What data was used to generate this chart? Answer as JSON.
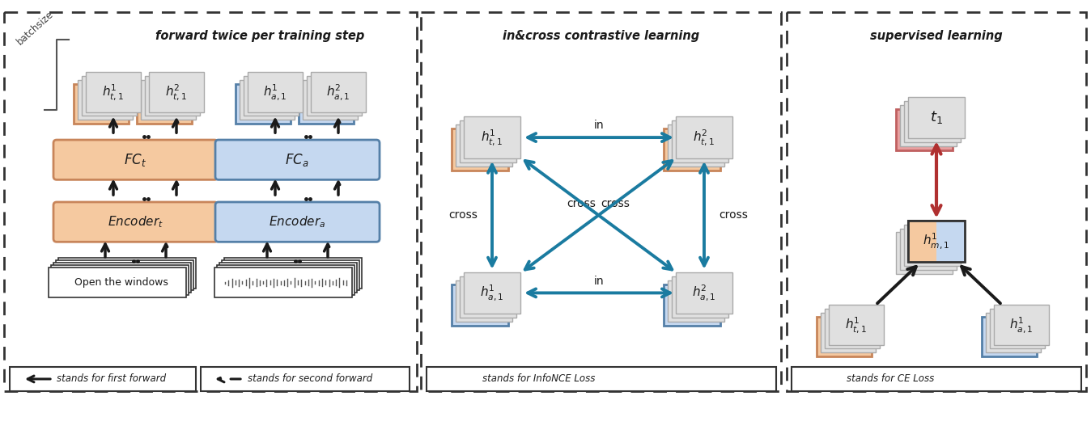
{
  "fig_width": 13.48,
  "fig_height": 5.37,
  "bg_color": "#ffffff",
  "panel1_title": "forward twice per training step",
  "panel2_title": "in&cross contrastive learning",
  "panel3_title": "supervised learning",
  "orange_fill": "#F5C9A0",
  "orange_border": "#C8855A",
  "blue_fill": "#C5D8F0",
  "blue_border": "#5580A8",
  "red_fill": "#E8A0A0",
  "red_border": "#C06060",
  "gray_fill": "#D8D8D8",
  "gray_border": "#888888",
  "teal_color": "#1A7BA0",
  "red_arrow_color": "#B03030",
  "black_color": "#1a1a1a",
  "legend1": "stands for first forward",
  "legend2": "stands for second forward",
  "legend3": "stands for InfoNCE Loss",
  "legend4": "stands for CE Loss"
}
